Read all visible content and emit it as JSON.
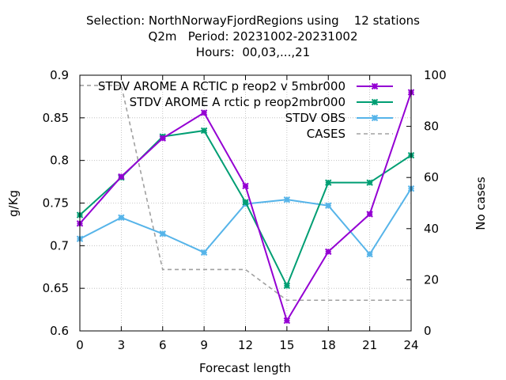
{
  "title": {
    "line1": "Selection: NorthNorwayFjordRegions using    12 stations",
    "line2": "Q2m   Period: 20231002-20231002",
    "line3": "Hours:  00,03,...,21"
  },
  "chart_data": {
    "type": "line",
    "xlabel": "Forecast length",
    "ylabel": "g/Kg",
    "y2label": "No cases",
    "x": [
      0,
      3,
      6,
      9,
      12,
      15,
      18,
      21,
      24
    ],
    "xlim": [
      0,
      24
    ],
    "ylim": [
      0.6,
      0.9
    ],
    "y2lim": [
      0,
      100
    ],
    "xticks": [
      "0",
      "3",
      "6",
      "9",
      "12",
      "15",
      "18",
      "21",
      "24"
    ],
    "yticks": [
      "0.6",
      "0.65",
      "0.7",
      "0.75",
      "0.8",
      "0.85",
      "0.9"
    ],
    "y2ticks": [
      "0",
      "20",
      "40",
      "60",
      "80",
      "100"
    ],
    "grid": true,
    "legend_position": "top-right",
    "series": [
      {
        "name": "STDV AROME_Arctic_preop2_v5mbr000",
        "legend_label": "STDV AROME A RCTIC p reop2 v 5mbr000",
        "color": "#9400d3",
        "axis": "y",
        "values": [
          0.726,
          0.781,
          0.826,
          0.856,
          0.77,
          0.612,
          0.693,
          0.737,
          0.88
        ]
      },
      {
        "name": "STDV AROME_Arctic_preop2mbr000",
        "legend_label": "STDV AROME A rctic p reop2mbr000",
        "color": "#009e73",
        "axis": "y",
        "values": [
          0.736,
          0.78,
          0.828,
          0.835,
          0.751,
          0.653,
          0.774,
          0.774,
          0.806
        ]
      },
      {
        "name": "STDV OBS",
        "legend_label": "STDV OBS",
        "color": "#56b4e9",
        "axis": "y",
        "values": [
          0.708,
          0.733,
          0.714,
          0.692,
          0.749,
          0.754,
          0.747,
          0.69,
          0.767
        ]
      },
      {
        "name": "CASES",
        "legend_label": "CASES",
        "color": "#a0a0a0",
        "axis": "y2",
        "dashed": true,
        "values": [
          96,
          96,
          24,
          24,
          24,
          12,
          12,
          12,
          12
        ]
      }
    ]
  }
}
